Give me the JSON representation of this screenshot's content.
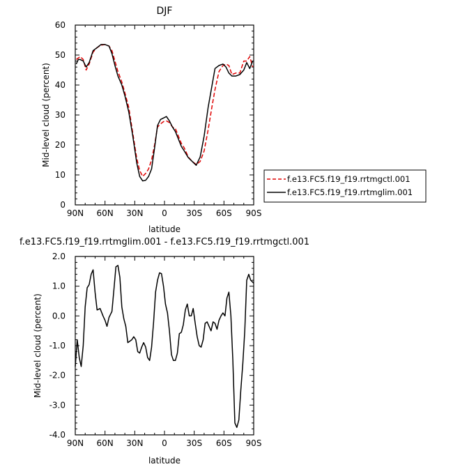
{
  "chart_data": [
    {
      "type": "line",
      "title": "DJF",
      "xlabel": "latitude",
      "ylabel": "Mid-level cloud (percent)",
      "xlim": [
        -90,
        90
      ],
      "ylim": [
        0,
        60
      ],
      "x_ticks": [
        -90,
        -60,
        -30,
        0,
        30,
        60,
        90
      ],
      "x_tick_labels": [
        "90N",
        "60N",
        "30N",
        "0",
        "30S",
        "60S",
        "90S"
      ],
      "y_ticks": [
        0,
        10,
        20,
        30,
        40,
        50,
        60
      ],
      "y_tick_labels": [
        "0",
        "10",
        "20",
        "30",
        "40",
        "50",
        "60"
      ],
      "legend_position": "right",
      "series": [
        {
          "name": "f.e13.FC5.f19_f19.rrtmgctl.001",
          "color": "#e00000",
          "dash": "dashed",
          "x": [
            -89,
            -85,
            -82,
            -79,
            -76,
            -72,
            -68,
            -64,
            -60,
            -56,
            -53,
            -50,
            -47,
            -43,
            -40,
            -36,
            -32,
            -28,
            -25,
            -22,
            -19,
            -16,
            -13,
            -10,
            -7,
            -4,
            -1,
            2,
            5,
            8,
            11,
            14,
            17,
            20,
            24,
            28,
            32,
            36,
            40,
            44,
            48,
            51,
            55,
            59,
            62,
            65,
            68,
            72,
            76,
            80,
            83,
            86,
            89
          ],
          "y": [
            48.5,
            49.5,
            48.5,
            45,
            47,
            51,
            52.5,
            53.3,
            53.5,
            53,
            51.5,
            48,
            44.5,
            41,
            37.5,
            32.5,
            24,
            15.5,
            11.5,
            9.5,
            10.5,
            12,
            15,
            20,
            26,
            27,
            27.8,
            28,
            27.5,
            26,
            25.5,
            23,
            20.5,
            19,
            16,
            14.5,
            13.5,
            14.5,
            18,
            25,
            33,
            38.5,
            44.5,
            46.5,
            47,
            46.5,
            43.5,
            44,
            44,
            48,
            48,
            49.5,
            46
          ]
        },
        {
          "name": "f.e13.FC5.f19_f19.rrtmglim.001",
          "color": "#000000",
          "dash": "solid",
          "x": [
            -89,
            -87,
            -85,
            -82,
            -79,
            -76,
            -72,
            -68,
            -64,
            -60,
            -56,
            -53,
            -50,
            -47,
            -43,
            -40,
            -36,
            -32,
            -28,
            -25,
            -22,
            -19,
            -16,
            -13,
            -10,
            -7,
            -4,
            -1,
            2,
            5,
            8,
            11,
            14,
            17,
            20,
            24,
            28,
            32,
            36,
            40,
            44,
            48,
            51,
            55,
            59,
            62,
            65,
            68,
            72,
            76,
            80,
            83,
            86,
            89
          ],
          "y": [
            47,
            48.5,
            48.5,
            48,
            46,
            47.5,
            51.5,
            52.5,
            53.5,
            53.5,
            53,
            50.5,
            46.5,
            43,
            40,
            36.5,
            31,
            23,
            14,
            9.5,
            8,
            8.2,
            9.5,
            12,
            19,
            26.5,
            28.5,
            29,
            29.5,
            28,
            26,
            24.5,
            22,
            19.5,
            18,
            15.8,
            14.5,
            13.2,
            16,
            23,
            32.5,
            40,
            45.5,
            46.5,
            47,
            46,
            44,
            43,
            43,
            43.5,
            45,
            47.5,
            45.5,
            48
          ]
        }
      ]
    },
    {
      "type": "line",
      "title": "f.e13.FC5.f19_f19.rrtmglim.001 - f.e13.FC5.f19_f19.rrtmgctl.001",
      "xlabel": "latitude",
      "ylabel": "Mid-level cloud (percent)",
      "xlim": [
        -90,
        90
      ],
      "ylim": [
        -4,
        2
      ],
      "x_ticks": [
        -90,
        -60,
        -30,
        0,
        30,
        60,
        90
      ],
      "x_tick_labels": [
        "90N",
        "60N",
        "30N",
        "0",
        "30S",
        "60S",
        "90S"
      ],
      "y_ticks": [
        -4,
        -3,
        -2,
        -1,
        0,
        1,
        2
      ],
      "y_tick_labels": [
        "-4.0",
        "-3.0",
        "-2.0",
        "-1.0",
        "0.0",
        "1.0",
        "2.0"
      ],
      "series": [
        {
          "name": "",
          "color": "#000000",
          "dash": "solid",
          "x": [
            -90,
            -88,
            -86,
            -84,
            -82,
            -80,
            -78,
            -76,
            -74,
            -72,
            -70,
            -68,
            -65,
            -62,
            -60,
            -58,
            -56,
            -53,
            -51,
            -49,
            -47,
            -45,
            -43,
            -41,
            -39,
            -37,
            -35,
            -33,
            -31,
            -29,
            -27,
            -25,
            -23,
            -21,
            -19,
            -17,
            -15,
            -13,
            -11,
            -9,
            -7,
            -5,
            -3,
            -1,
            1,
            3,
            5,
            7,
            9,
            11,
            13,
            15,
            17,
            19,
            21,
            23,
            25,
            27,
            29,
            31,
            33,
            35,
            37,
            39,
            41,
            43,
            45,
            47,
            49,
            51,
            53,
            55,
            57,
            59,
            61,
            63,
            65,
            67,
            69,
            71,
            73,
            75,
            77,
            79,
            81,
            83,
            85,
            87,
            90
          ],
          "y": [
            -1.7,
            -0.8,
            -1.4,
            -1.7,
            -1.0,
            0.3,
            0.95,
            1.05,
            1.4,
            1.55,
            0.8,
            0.2,
            0.25,
            0.0,
            -0.15,
            -0.35,
            -0.05,
            0.15,
            0.9,
            1.65,
            1.7,
            1.3,
            0.3,
            -0.1,
            -0.35,
            -0.9,
            -0.85,
            -0.8,
            -0.7,
            -0.8,
            -1.2,
            -1.25,
            -1.05,
            -0.9,
            -1.05,
            -1.4,
            -1.5,
            -1.05,
            -0.2,
            0.8,
            1.2,
            1.45,
            1.42,
            1.0,
            0.4,
            0.1,
            -0.5,
            -1.3,
            -1.5,
            -1.5,
            -1.25,
            -0.6,
            -0.55,
            -0.3,
            0.2,
            0.4,
            0.0,
            0.0,
            0.25,
            -0.25,
            -0.7,
            -1.0,
            -1.05,
            -0.8,
            -0.25,
            -0.2,
            -0.35,
            -0.5,
            -0.2,
            -0.25,
            -0.45,
            -0.15,
            0.0,
            0.1,
            0.0,
            0.6,
            0.8,
            0.0,
            -1.5,
            -3.6,
            -3.75,
            -3.5,
            -2.5,
            -1.6,
            -0.5,
            1.2,
            1.4,
            1.2,
            1.1
          ]
        }
      ]
    }
  ]
}
